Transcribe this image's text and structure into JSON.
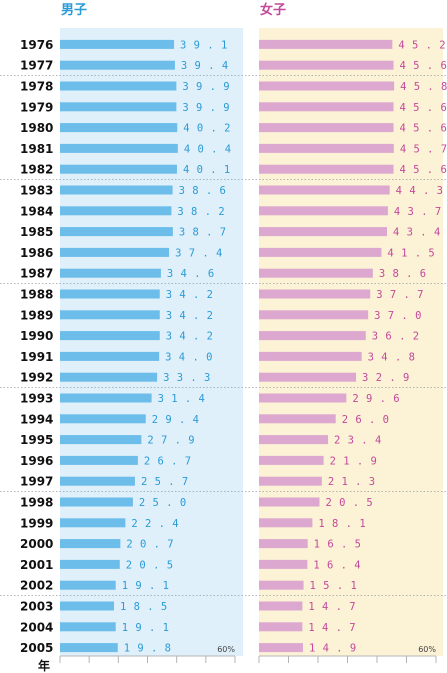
{
  "chart_data": {
    "type": "bar",
    "orientation": "horizontal",
    "categories": [
      "1976",
      "1977",
      "1978",
      "1979",
      "1980",
      "1981",
      "1982",
      "1983",
      "1984",
      "1985",
      "1986",
      "1987",
      "1988",
      "1989",
      "1990",
      "1991",
      "1992",
      "1993",
      "1994",
      "1995",
      "1996",
      "1997",
      "1998",
      "1999",
      "2000",
      "2001",
      "2002",
      "2003",
      "2004",
      "2005"
    ],
    "category_axis_label": "年",
    "x_max_label": "60%",
    "xlim": [
      0,
      60
    ],
    "series": [
      {
        "name": "男子",
        "color": "#6cbdea",
        "label_color": "#2a9bd6",
        "panel_bg": "#dff0fb",
        "values": [
          39.1,
          39.4,
          39.9,
          39.9,
          40.2,
          40.4,
          40.1,
          38.6,
          38.2,
          38.7,
          37.4,
          34.6,
          34.2,
          34.2,
          34.2,
          34.0,
          33.3,
          31.4,
          29.4,
          27.9,
          26.7,
          25.7,
          25.0,
          22.4,
          20.7,
          20.5,
          19.1,
          18.5,
          19.1,
          19.8
        ]
      },
      {
        "name": "女子",
        "color": "#dca8d0",
        "label_color": "#c4489c",
        "panel_bg": "#fcf2d6",
        "values": [
          45.2,
          45.6,
          45.8,
          45.6,
          45.6,
          45.7,
          45.6,
          44.3,
          43.7,
          43.4,
          41.5,
          38.6,
          37.7,
          37.0,
          36.2,
          34.8,
          32.9,
          29.6,
          26.0,
          23.4,
          21.9,
          21.3,
          20.5,
          18.1,
          16.5,
          16.4,
          15.1,
          14.7,
          14.7,
          14.9
        ]
      }
    ],
    "value_format": "one decimal, full-width spaced digits",
    "group_separators_after_years": [
      "1977",
      "1982",
      "1987",
      "1992",
      "1997",
      "2002"
    ]
  }
}
